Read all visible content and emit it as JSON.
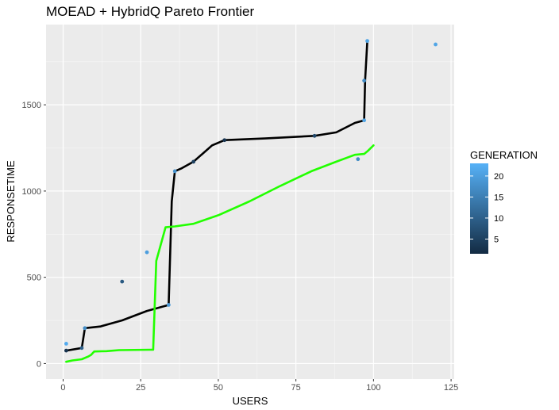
{
  "chart_data": {
    "type": "scatter",
    "title": "MOEAD + HybridQ Pareto Frontier",
    "xlabel": "USERS",
    "ylabel": "RESPONSETIME",
    "xlim": [
      -5.5,
      126
    ],
    "ylim": [
      -90,
      1965
    ],
    "x_ticks": [
      0,
      25,
      50,
      75,
      100,
      125
    ],
    "y_ticks": [
      0,
      500,
      1000,
      1500
    ],
    "grid": true,
    "legend": {
      "title": "GENERATION",
      "placement": "right",
      "range": [
        1.5,
        23
      ],
      "ticks": [
        5,
        10,
        15,
        20
      ],
      "low_color": "#132B43",
      "high_color": "#56B1F7"
    },
    "points": [
      {
        "x": 1,
        "y": 115,
        "generation": 22
      },
      {
        "x": 1,
        "y": 75,
        "generation": 3
      },
      {
        "x": 6,
        "y": 90,
        "generation": 10
      },
      {
        "x": 7,
        "y": 205,
        "generation": 17
      },
      {
        "x": 19,
        "y": 475,
        "generation": 9
      },
      {
        "x": 27,
        "y": 645,
        "generation": 20
      },
      {
        "x": 34,
        "y": 340,
        "generation": 19
      },
      {
        "x": 36,
        "y": 1115,
        "generation": 18
      },
      {
        "x": 42,
        "y": 1170,
        "generation": 5
      },
      {
        "x": 52,
        "y": 1295,
        "generation": 3
      },
      {
        "x": 81,
        "y": 1320,
        "generation": 6
      },
      {
        "x": 95,
        "y": 1185,
        "generation": 17
      },
      {
        "x": 97,
        "y": 1410,
        "generation": 21
      },
      {
        "x": 97,
        "y": 1640,
        "generation": 17
      },
      {
        "x": 98,
        "y": 1870,
        "generation": 21
      },
      {
        "x": 120,
        "y": 1850,
        "generation": 21
      }
    ],
    "lines": [
      {
        "color": "#000000",
        "points": [
          [
            1,
            75
          ],
          [
            6,
            90
          ],
          [
            7,
            205
          ],
          [
            12,
            215
          ],
          [
            19,
            250
          ],
          [
            27,
            305
          ],
          [
            33,
            335
          ],
          [
            34,
            340
          ],
          [
            35,
            940
          ],
          [
            36,
            1115
          ],
          [
            38,
            1130
          ],
          [
            42,
            1170
          ],
          [
            48,
            1265
          ],
          [
            52,
            1295
          ],
          [
            65,
            1305
          ],
          [
            81,
            1320
          ],
          [
            88,
            1340
          ],
          [
            94,
            1395
          ],
          [
            97,
            1410
          ],
          [
            97.3,
            1640
          ],
          [
            98,
            1870
          ]
        ]
      },
      {
        "color": "#22FF00",
        "points": [
          [
            1,
            10
          ],
          [
            3,
            18
          ],
          [
            6,
            25
          ],
          [
            8,
            40
          ],
          [
            9,
            50
          ],
          [
            10,
            70
          ],
          [
            14,
            72
          ],
          [
            18,
            78
          ],
          [
            28,
            80
          ],
          [
            29,
            80
          ],
          [
            30,
            595
          ],
          [
            33,
            790
          ],
          [
            36,
            795
          ],
          [
            42,
            810
          ],
          [
            50,
            860
          ],
          [
            60,
            940
          ],
          [
            70,
            1030
          ],
          [
            80,
            1115
          ],
          [
            88,
            1170
          ],
          [
            94,
            1210
          ],
          [
            97,
            1215
          ],
          [
            98,
            1230
          ],
          [
            100,
            1265
          ]
        ]
      }
    ]
  }
}
